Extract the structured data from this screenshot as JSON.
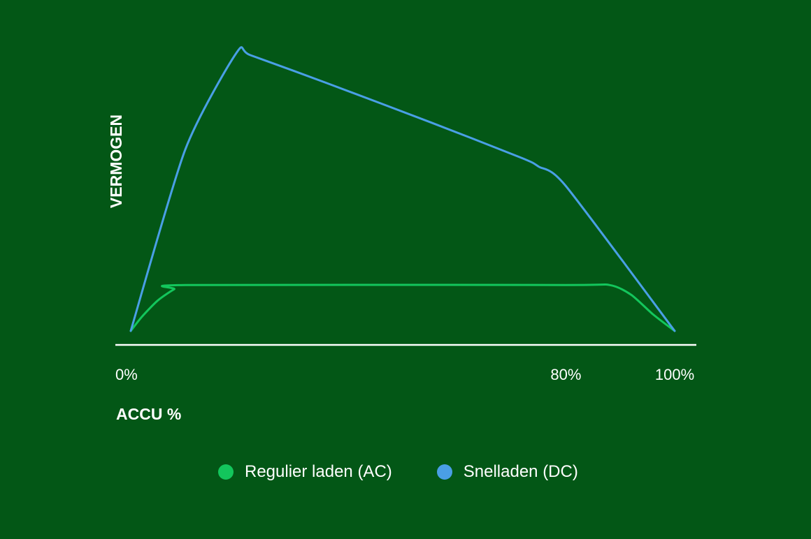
{
  "chart_data": {
    "type": "line",
    "title": "",
    "xlabel": "ACCU %",
    "ylabel": "VERMOGEN",
    "xlim": [
      0,
      100
    ],
    "ylim": [
      0,
      100
    ],
    "x_ticks": [
      {
        "value": 0,
        "label": "0%"
      },
      {
        "value": 80,
        "label": "80%"
      },
      {
        "value": 100,
        "label": "100%"
      }
    ],
    "grid": false,
    "legend_position": "bottom",
    "series": [
      {
        "name": "Regulier laden (AC)",
        "color": "#13c65c",
        "points": [
          [
            0,
            5
          ],
          [
            2,
            10
          ],
          [
            5,
            16
          ],
          [
            8,
            20
          ],
          [
            10,
            21.5
          ],
          [
            80,
            21.5
          ],
          [
            88,
            21.5
          ],
          [
            92,
            18
          ],
          [
            96,
            11
          ],
          [
            100,
            5
          ]
        ]
      },
      {
        "name": "Snelladen (DC)",
        "color": "#4a9fe5",
        "points": [
          [
            0,
            5
          ],
          [
            10,
            70
          ],
          [
            19.5,
            105
          ],
          [
            22,
            104
          ],
          [
            36,
            94
          ],
          [
            55,
            80
          ],
          [
            72,
            67
          ],
          [
            75,
            64
          ],
          [
            80,
            57
          ],
          [
            100,
            5
          ]
        ]
      }
    ]
  }
}
